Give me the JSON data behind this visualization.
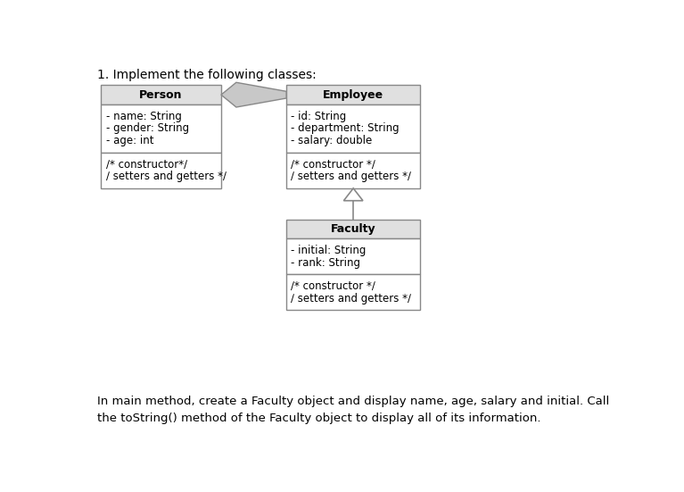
{
  "title": "1. Implement the following classes:",
  "footer": "In main method, create a Faculty object and display name, age, salary and initial. Call\nthe toString() method of the Faculty object to display all of its information.",
  "bg_color": "#ffffff",
  "box_fill": "#ffffff",
  "box_edge": "#888888",
  "header_fill": "#e0e0e0",
  "arrow_fill": "#c8c8c8",
  "arrow_edge": "#888888",
  "person": {
    "title": "Person",
    "attributes": [
      "- name: String",
      "- gender: String",
      "- age: int"
    ],
    "methods": [
      "∕* constructor*∕",
      "∕ setters and getters *∕"
    ]
  },
  "employee": {
    "title": "Employee",
    "attributes": [
      "- id: String",
      "- department: String",
      "- salary: double"
    ],
    "methods": [
      "∕* constructor *∕",
      "∕ setters and getters *∕"
    ]
  },
  "faculty": {
    "title": "Faculty",
    "attributes": [
      "- initial: String",
      "- rank: String"
    ],
    "methods": [
      "∕* constructor *∕",
      "∕ setters and getters *∕"
    ]
  }
}
